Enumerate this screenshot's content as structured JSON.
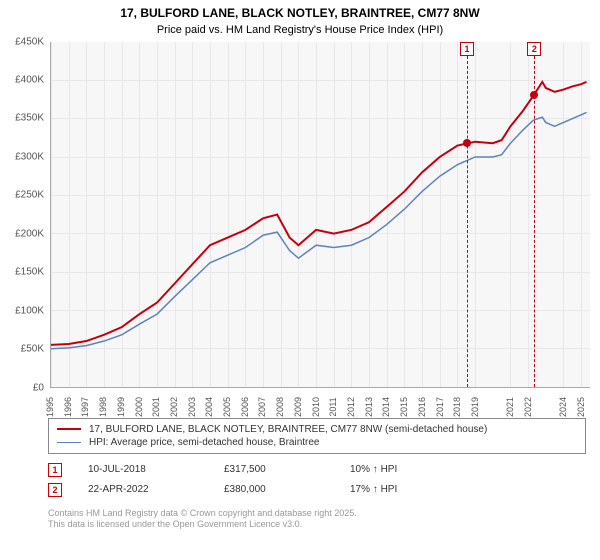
{
  "title": "17, BULFORD LANE, BLACK NOTLEY, BRAINTREE, CM77 8NW",
  "subtitle": "Price paid vs. HM Land Registry's House Price Index (HPI)",
  "chart": {
    "type": "line",
    "background_color": "#f7f7f8",
    "grid_color": "#e8e8ea",
    "axis_color": "#aaaaaa",
    "x_range": [
      1995,
      2025.5
    ],
    "ylim": [
      0,
      450000
    ],
    "y_ticks": [
      {
        "v": 0,
        "label": "£0"
      },
      {
        "v": 50000,
        "label": "£50K"
      },
      {
        "v": 100000,
        "label": "£100K"
      },
      {
        "v": 150000,
        "label": "£150K"
      },
      {
        "v": 200000,
        "label": "£200K"
      },
      {
        "v": 250000,
        "label": "£250K"
      },
      {
        "v": 300000,
        "label": "£300K"
      },
      {
        "v": 350000,
        "label": "£350K"
      },
      {
        "v": 400000,
        "label": "£400K"
      },
      {
        "v": 450000,
        "label": "£450K"
      }
    ],
    "x_ticks": [
      1995,
      1996,
      1997,
      1998,
      1999,
      2000,
      2001,
      2002,
      2003,
      2004,
      2005,
      2006,
      2007,
      2008,
      2009,
      2010,
      2011,
      2012,
      2013,
      2014,
      2015,
      2016,
      2017,
      2018,
      2019,
      2021,
      2022,
      2024,
      2025
    ],
    "series": [
      {
        "name": "17, BULFORD LANE, BLACK NOTLEY, BRAINTREE, CM77 8NW (semi-detached house)",
        "color": "#c4000f",
        "line_width": 2,
        "points": [
          [
            1995,
            55000
          ],
          [
            1996,
            56000
          ],
          [
            1997,
            60000
          ],
          [
            1998,
            68000
          ],
          [
            1999,
            78000
          ],
          [
            2000,
            95000
          ],
          [
            2001,
            110000
          ],
          [
            2002,
            135000
          ],
          [
            2003,
            160000
          ],
          [
            2004,
            185000
          ],
          [
            2005,
            195000
          ],
          [
            2006,
            205000
          ],
          [
            2007,
            220000
          ],
          [
            2007.8,
            225000
          ],
          [
            2008.5,
            195000
          ],
          [
            2009,
            185000
          ],
          [
            2010,
            205000
          ],
          [
            2011,
            200000
          ],
          [
            2012,
            205000
          ],
          [
            2013,
            215000
          ],
          [
            2014,
            235000
          ],
          [
            2015,
            255000
          ],
          [
            2016,
            280000
          ],
          [
            2017,
            300000
          ],
          [
            2018,
            315000
          ],
          [
            2018.5,
            317500
          ],
          [
            2019,
            320000
          ],
          [
            2020,
            318000
          ],
          [
            2020.5,
            322000
          ],
          [
            2021,
            340000
          ],
          [
            2021.7,
            360000
          ],
          [
            2022.3,
            380000
          ],
          [
            2022.8,
            398000
          ],
          [
            2023,
            390000
          ],
          [
            2023.5,
            385000
          ],
          [
            2024,
            388000
          ],
          [
            2024.5,
            392000
          ],
          [
            2025,
            395000
          ],
          [
            2025.3,
            398000
          ]
        ]
      },
      {
        "name": "HPI: Average price, semi-detached house, Braintree",
        "color": "#5e83ba",
        "line_width": 1.5,
        "points": [
          [
            1995,
            50000
          ],
          [
            1996,
            51000
          ],
          [
            1997,
            54000
          ],
          [
            1998,
            60000
          ],
          [
            1999,
            68000
          ],
          [
            2000,
            82000
          ],
          [
            2001,
            95000
          ],
          [
            2002,
            118000
          ],
          [
            2003,
            140000
          ],
          [
            2004,
            162000
          ],
          [
            2005,
            172000
          ],
          [
            2006,
            182000
          ],
          [
            2007,
            198000
          ],
          [
            2007.8,
            202000
          ],
          [
            2008.5,
            178000
          ],
          [
            2009,
            168000
          ],
          [
            2010,
            185000
          ],
          [
            2011,
            182000
          ],
          [
            2012,
            185000
          ],
          [
            2013,
            195000
          ],
          [
            2014,
            212000
          ],
          [
            2015,
            232000
          ],
          [
            2016,
            255000
          ],
          [
            2017,
            275000
          ],
          [
            2018,
            290000
          ],
          [
            2018.5,
            295000
          ],
          [
            2019,
            300000
          ],
          [
            2020,
            300000
          ],
          [
            2020.5,
            303000
          ],
          [
            2021,
            318000
          ],
          [
            2021.7,
            335000
          ],
          [
            2022.3,
            348000
          ],
          [
            2022.8,
            352000
          ],
          [
            2023,
            345000
          ],
          [
            2023.5,
            340000
          ],
          [
            2024,
            345000
          ],
          [
            2024.5,
            350000
          ],
          [
            2025,
            355000
          ],
          [
            2025.3,
            358000
          ]
        ]
      }
    ],
    "markers": [
      {
        "n": "1",
        "x": 2018.5,
        "y": 317500,
        "color": "#c4000f"
      },
      {
        "n": "2",
        "x": 2022.3,
        "y": 380000,
        "color": "#c4000f"
      }
    ]
  },
  "legend_items": [
    {
      "color": "#c4000f",
      "width": 2,
      "label": "17, BULFORD LANE, BLACK NOTLEY, BRAINTREE, CM77 8NW (semi-detached house)"
    },
    {
      "color": "#5e83ba",
      "width": 1.5,
      "label": "HPI: Average price, semi-detached house, Braintree"
    }
  ],
  "sales": [
    {
      "n": "1",
      "date": "10-JUL-2018",
      "price": "£317,500",
      "pct": "10% ↑ HPI"
    },
    {
      "n": "2",
      "date": "22-APR-2022",
      "price": "£380,000",
      "pct": "17% ↑ HPI"
    }
  ],
  "footer1": "Contains HM Land Registry data © Crown copyright and database right 2025.",
  "footer2": "This data is licensed under the Open Government Licence v3.0."
}
